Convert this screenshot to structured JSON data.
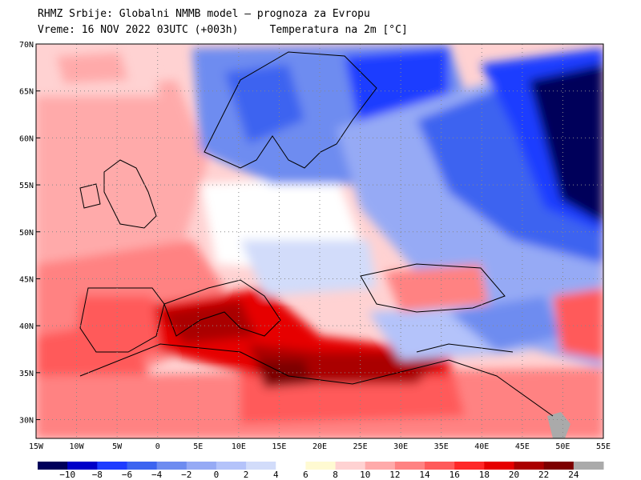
{
  "header": {
    "title_line1": "RHMZ Srbije: Globalni NMMB model – prognoza za Evropu",
    "title_line2_left": "Vreme: 16 NOV 2022 03UTC (+003h)",
    "title_line2_right": "Temperatura na 2m [°C]"
  },
  "map": {
    "lat_labels": [
      "70N",
      "65N",
      "60N",
      "55N",
      "50N",
      "45N",
      "40N",
      "35N",
      "30N"
    ],
    "lon_labels": [
      "15W",
      "10W",
      "5W",
      "0",
      "5E",
      "10E",
      "15E",
      "20E",
      "25E",
      "30E",
      "35E",
      "40E",
      "45E",
      "50E",
      "55E"
    ],
    "grid": true,
    "grid_style": "dotted"
  },
  "colorbar": {
    "colors": [
      "#00005a",
      "#0000c8",
      "#1e3cff",
      "#3c64f0",
      "#6e8cf0",
      "#96aaf5",
      "#b4c3fa",
      "#d2dcfa",
      "#ffffff",
      "#fffad2",
      "#ffd2d2",
      "#ffaaaa",
      "#ff8282",
      "#ff5a5a",
      "#ff2828",
      "#e60000",
      "#aa0000",
      "#7d0000",
      "#aaaaaa"
    ],
    "labels": [
      "−10",
      "−8",
      "−6",
      "−4",
      "−2",
      "0",
      "2",
      "4",
      "6",
      "8",
      "10",
      "12",
      "14",
      "16",
      "18",
      "20",
      "22",
      "24"
    ]
  }
}
